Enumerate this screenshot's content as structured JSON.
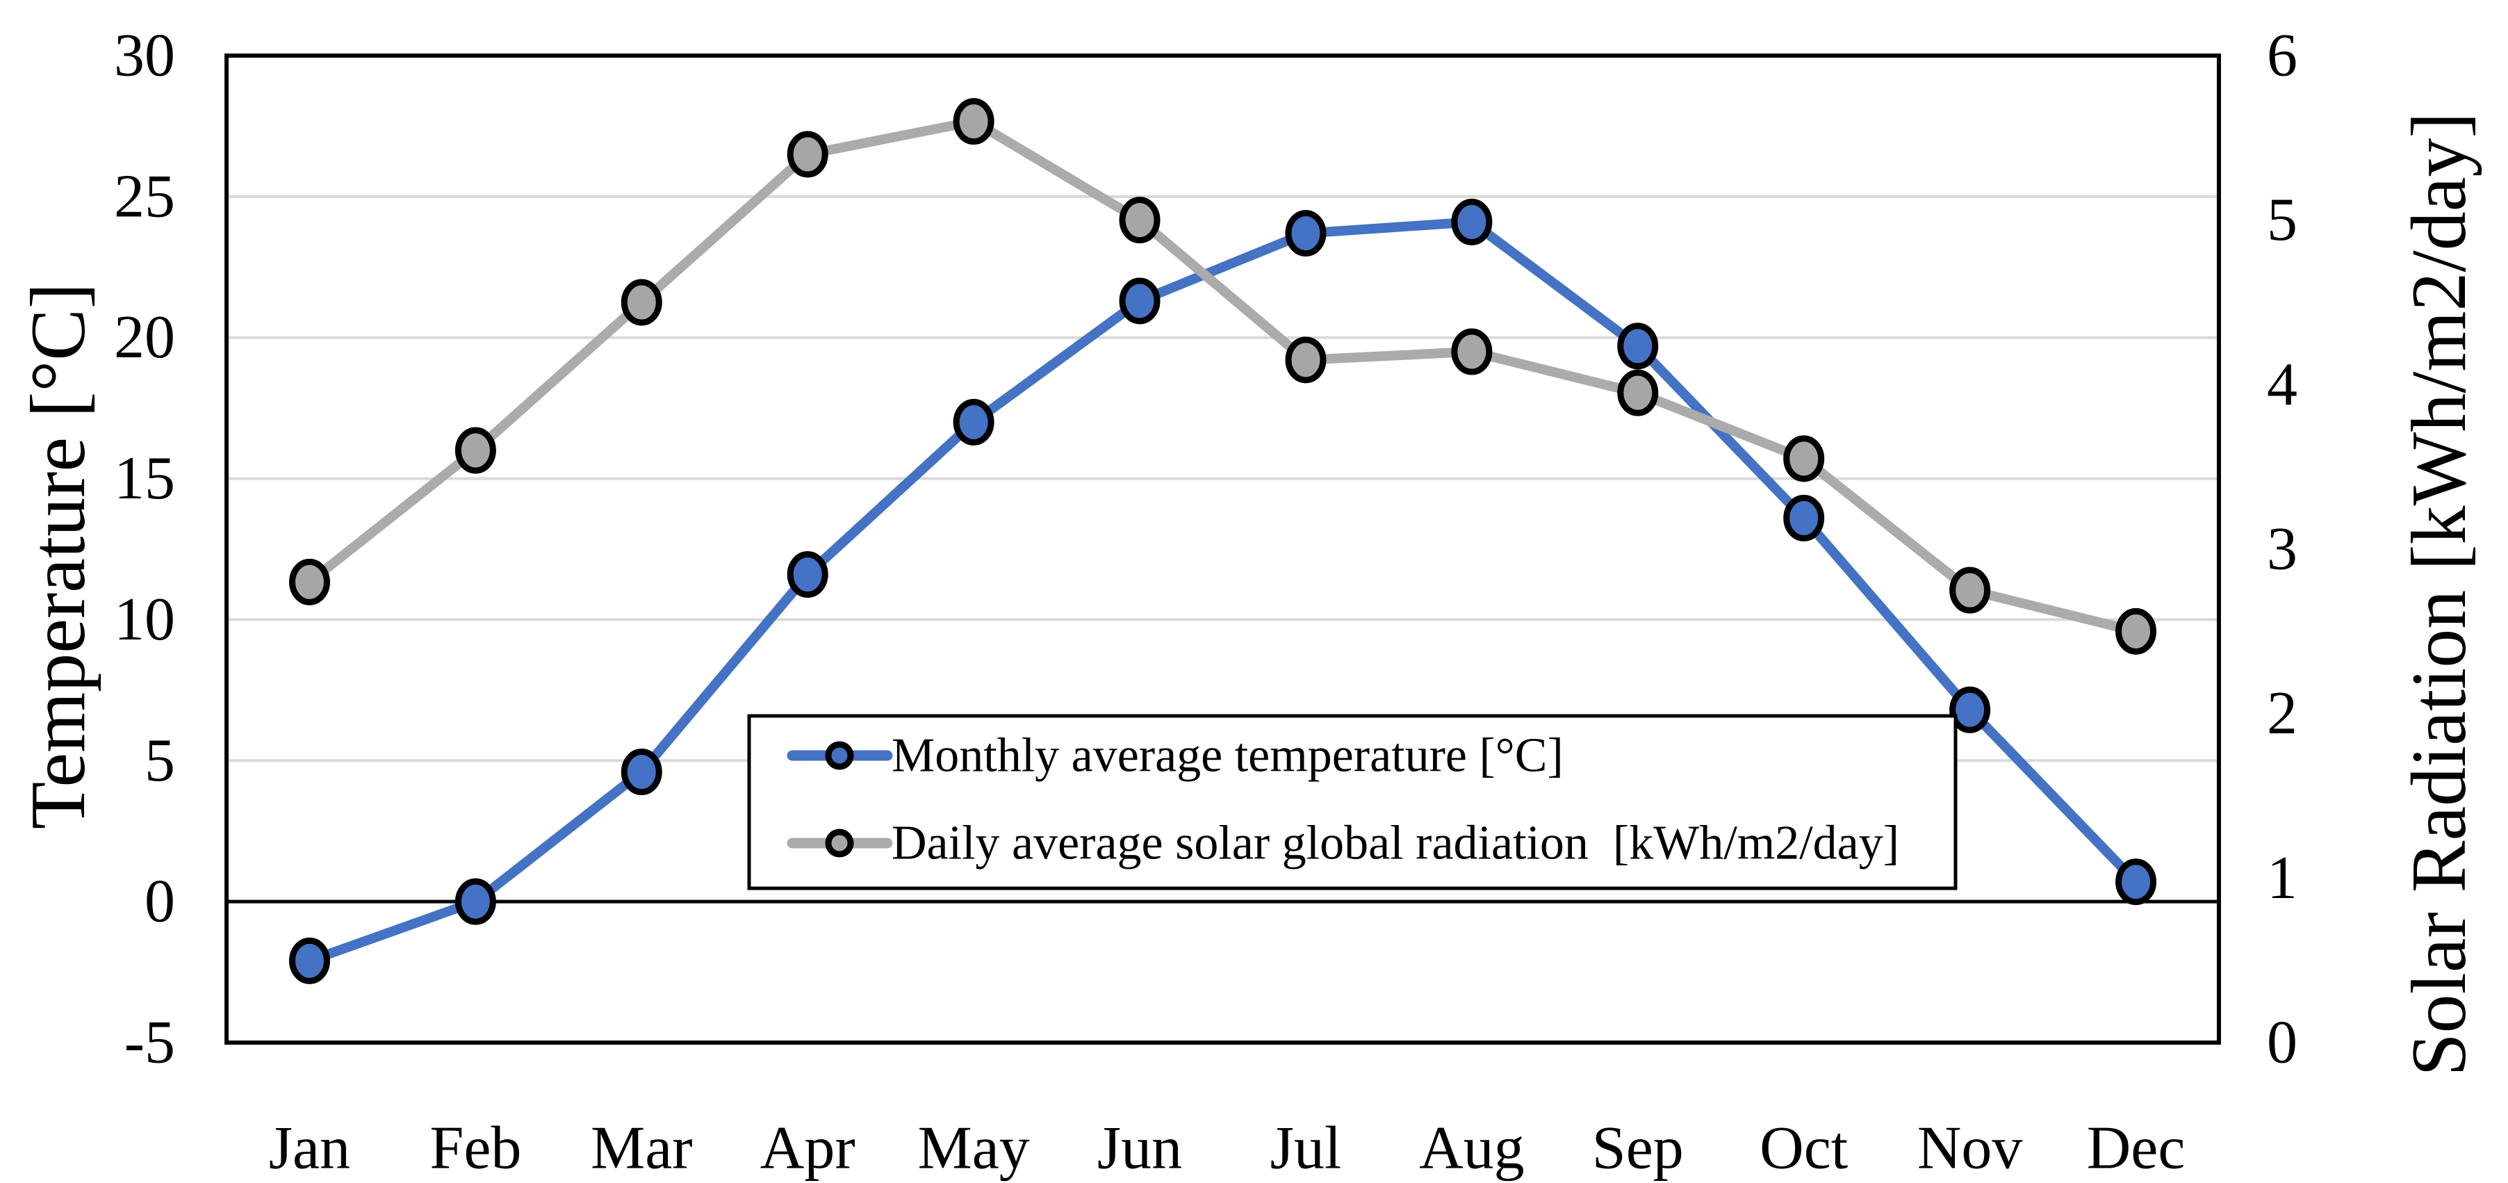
{
  "chart_data": {
    "type": "line",
    "categories": [
      "Jan",
      "Feb",
      "Mar",
      "Apr",
      "May",
      "Jun",
      "Jul",
      "Aug",
      "Sep",
      "Oct",
      "Nov",
      "Dec"
    ],
    "series": [
      {
        "name": "Monthly average temperature [°C]",
        "axis": "left",
        "color": "#4472C4",
        "marker_fill": "#4472C4",
        "marker_outline": "#000000",
        "values": [
          -2.1,
          0,
          4.6,
          11.6,
          17,
          21.3,
          23.7,
          24.1,
          19.7,
          13.6,
          6.8,
          0.7
        ]
      },
      {
        "name": "Daily average solar global radiation  [kWh/m2/day]",
        "axis": "right",
        "color": "#ABABAB",
        "marker_fill": "#A6A6A6",
        "marker_outline": "#000000",
        "values": [
          2.8,
          3.6,
          4.5,
          5.4,
          5.6,
          5,
          4.15,
          4.2,
          3.95,
          3.55,
          2.75,
          2.5
        ]
      }
    ],
    "left_axis": {
      "title": "Temperature [°C]",
      "min": -5,
      "max": 30,
      "step": 5,
      "tick_labels": [
        "30",
        "25",
        "20",
        "15",
        "10",
        "5",
        "0",
        "-5"
      ]
    },
    "right_axis": {
      "title": "Solar Radiation [kWh/m2/day]",
      "min": 0,
      "max": 6,
      "step": 1,
      "tick_labels": [
        "6",
        "5",
        "4",
        "3",
        "2",
        "1",
        "0"
      ]
    },
    "x_axis": {
      "labels": [
        "Jan",
        "Feb",
        "Mar",
        "Apr",
        "May",
        "Jun",
        "Jul",
        "Aug",
        "Sep",
        "Oct",
        "Nov",
        "Dec"
      ]
    },
    "grid": {
      "show": true,
      "color": "#D9D9D9"
    },
    "zero_line": {
      "value": 0,
      "color": "#000000"
    },
    "plot_border_color": "#000000",
    "background": "#FFFFFF",
    "legend": {
      "position": "inside-bottom-center",
      "border_color": "#000000",
      "fill": "#FFFFFF"
    }
  }
}
